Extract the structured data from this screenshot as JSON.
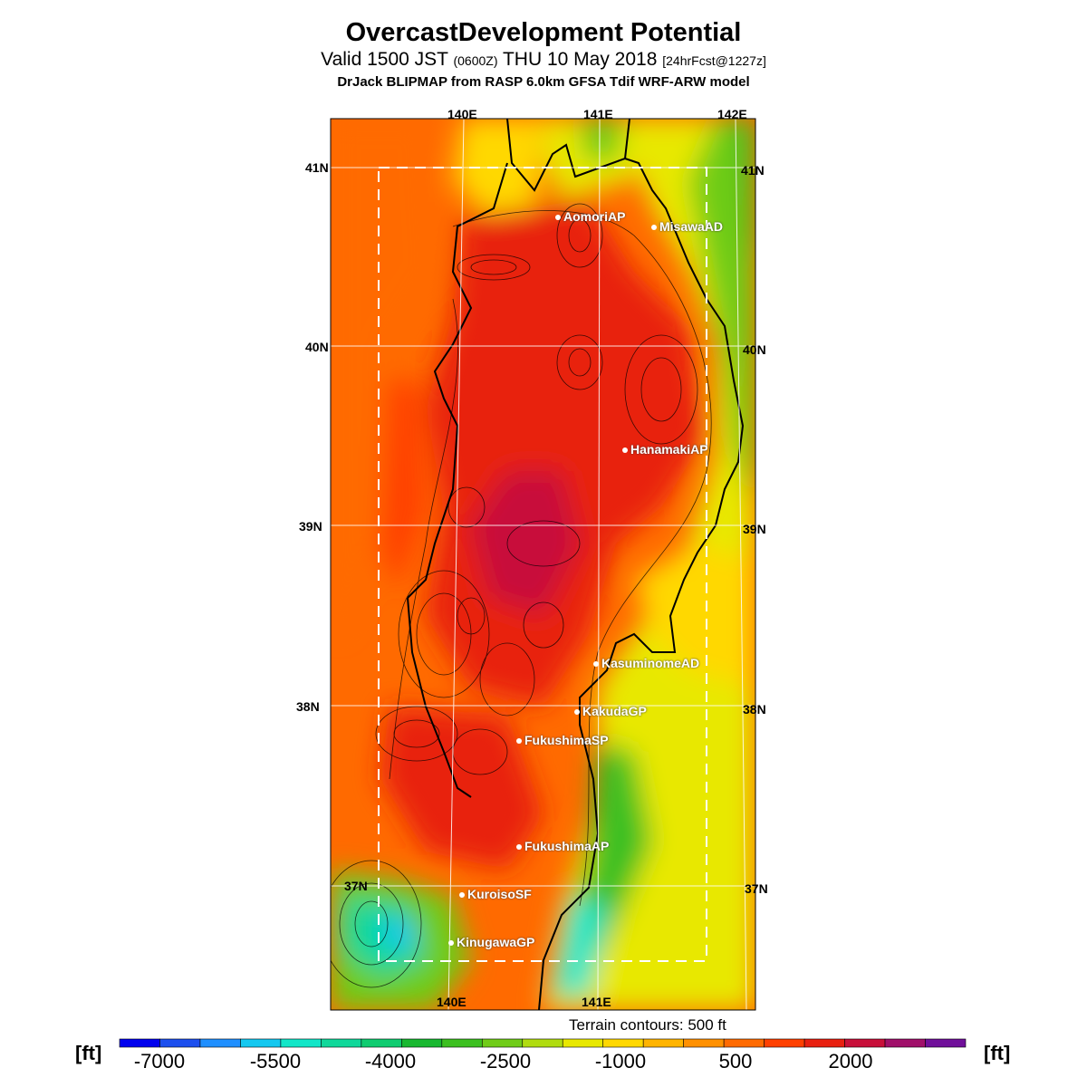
{
  "header": {
    "title": "OvercastDevelopment Potential",
    "valid_prefix": "Valid 1500 JST",
    "valid_zulu": "(0600Z)",
    "valid_date": "THU 10 May 2018",
    "forecast": "[24hrFcst@1227z]",
    "model": "DrJack BLIPMAP from RASP 6.0km GFSA Tdif WRF-ARW model"
  },
  "axes": {
    "lon_top": [
      "140E",
      "141E",
      "142E"
    ],
    "lon_bottom": [
      "140E",
      "141E"
    ],
    "lat_left": [
      "41N",
      "40N",
      "39N",
      "38N",
      "37N"
    ],
    "lat_right": [
      "41N",
      "40N",
      "39N",
      "38N",
      "37N"
    ]
  },
  "stations": [
    {
      "name": "AomoriAP"
    },
    {
      "name": "MisawaAD"
    },
    {
      "name": "HanamakiAP"
    },
    {
      "name": "KasuminomeAD"
    },
    {
      "name": "KakudaGP"
    },
    {
      "name": "FukushimaSP"
    },
    {
      "name": "FukushimaAP"
    },
    {
      "name": "KuroisoSF"
    },
    {
      "name": "KinugawaGP"
    }
  ],
  "terrain_note": "Terrain contours: 500 ft",
  "colorbar": {
    "unit": "[ft]",
    "labels": [
      "-7000",
      "-5500",
      "-4000",
      "-2500",
      "-1000",
      "500",
      "2000"
    ],
    "colors": [
      "#0000ee",
      "#1c4fee",
      "#1f8fff",
      "#14c8f0",
      "#12e6c8",
      "#10d89a",
      "#0fcc70",
      "#18b830",
      "#3cc020",
      "#70cc18",
      "#b0dc10",
      "#e8e800",
      "#ffd800",
      "#ffb400",
      "#ff9000",
      "#ff6a00",
      "#ff4000",
      "#e82010",
      "#c8103a",
      "#a0106a",
      "#70109a"
    ]
  }
}
